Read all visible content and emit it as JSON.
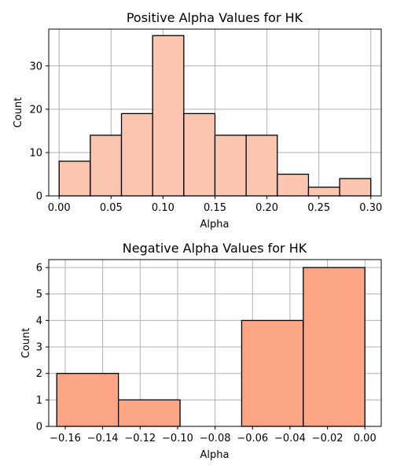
{
  "chart_data": [
    {
      "type": "bar",
      "title": "Positive Alpha Values for HK",
      "xlabel": "Alpha",
      "ylabel": "Count",
      "bar_color": "#fcc5b0",
      "xlim": [
        -0.01,
        0.31
      ],
      "ylim": [
        0,
        38.5
      ],
      "xticks": [
        "0.00",
        "0.05",
        "0.10",
        "0.15",
        "0.20",
        "0.25",
        "0.30"
      ],
      "xtick_values": [
        0.0,
        0.05,
        0.1,
        0.15,
        0.2,
        0.25,
        0.3
      ],
      "yticks": [
        "0",
        "10",
        "20",
        "30"
      ],
      "ytick_values": [
        0,
        10,
        20,
        30
      ],
      "grid": true,
      "bins": [
        {
          "x0": 0.0,
          "x1": 0.03,
          "count": 8
        },
        {
          "x0": 0.03,
          "x1": 0.06,
          "count": 14
        },
        {
          "x0": 0.06,
          "x1": 0.09,
          "count": 19
        },
        {
          "x0": 0.09,
          "x1": 0.12,
          "count": 37
        },
        {
          "x0": 0.12,
          "x1": 0.15,
          "count": 19
        },
        {
          "x0": 0.15,
          "x1": 0.18,
          "count": 14
        },
        {
          "x0": 0.18,
          "x1": 0.21,
          "count": 14
        },
        {
          "x0": 0.21,
          "x1": 0.24,
          "count": 5
        },
        {
          "x0": 0.24,
          "x1": 0.27,
          "count": 2
        },
        {
          "x0": 0.27,
          "x1": 0.3,
          "count": 4
        }
      ]
    },
    {
      "type": "bar",
      "title": "Negative Alpha Values for HK",
      "xlabel": "Alpha",
      "ylabel": "Count",
      "bar_color": "#fca686",
      "xlim": [
        -0.1688,
        0.0087
      ],
      "ylim": [
        0,
        6.3
      ],
      "xticks": [
        "−0.16",
        "−0.14",
        "−0.12",
        "−0.10",
        "−0.08",
        "−0.06",
        "−0.04",
        "−0.02",
        "0.00"
      ],
      "xtick_values": [
        -0.16,
        -0.14,
        -0.12,
        -0.1,
        -0.08,
        -0.06,
        -0.04,
        -0.02,
        0.0
      ],
      "yticks": [
        "0",
        "1",
        "2",
        "3",
        "4",
        "5",
        "6"
      ],
      "ytick_values": [
        0,
        1,
        2,
        3,
        4,
        5,
        6
      ],
      "grid": true,
      "bins": [
        {
          "x0": -0.1645,
          "x1": -0.1316,
          "count": 2
        },
        {
          "x0": -0.1316,
          "x1": -0.0987,
          "count": 1
        },
        {
          "x0": -0.0987,
          "x1": -0.0658,
          "count": 0
        },
        {
          "x0": -0.0658,
          "x1": -0.0329,
          "count": 4
        },
        {
          "x0": -0.0329,
          "x1": 0.0,
          "count": 6
        }
      ]
    }
  ]
}
